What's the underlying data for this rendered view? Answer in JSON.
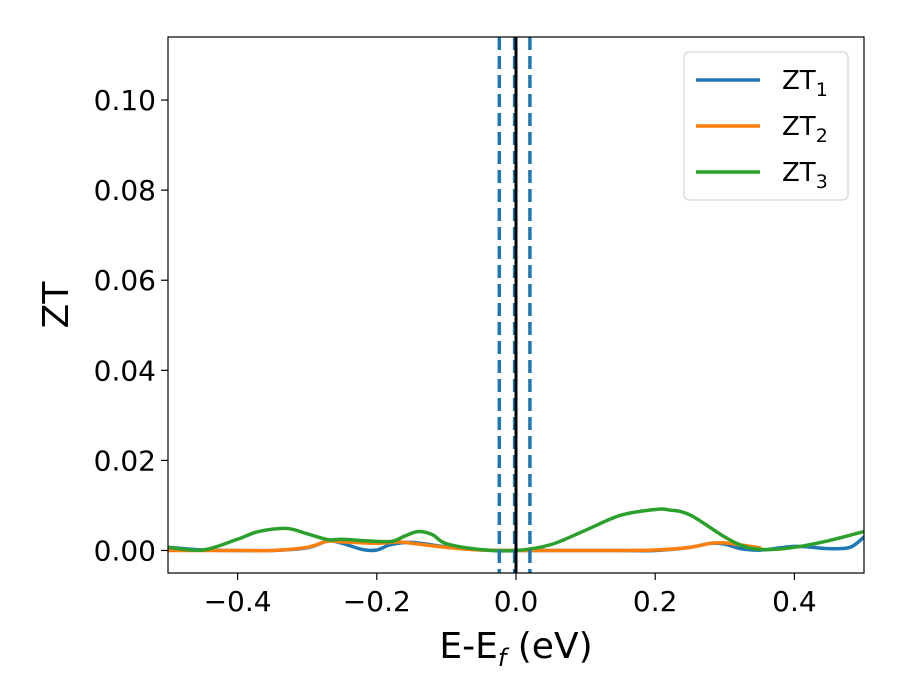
{
  "chart_data": {
    "type": "line",
    "xlabel": "E-E",
    "xlabel_sub": "f",
    "xlabel_unit": " (eV)",
    "ylabel": "ZT",
    "xlim": [
      -0.5,
      0.5
    ],
    "ylim": [
      -0.005,
      0.114
    ],
    "xticks": [
      -0.4,
      -0.2,
      0.0,
      0.2,
      0.4
    ],
    "xtick_labels": [
      "−0.4",
      "−0.2",
      "0.0",
      "0.2",
      "0.4"
    ],
    "yticks": [
      0.0,
      0.02,
      0.04,
      0.06,
      0.08,
      0.1
    ],
    "ytick_labels": [
      "0.00",
      "0.02",
      "0.04",
      "0.06",
      "0.08",
      "0.10"
    ],
    "grid": false,
    "legend_position": "top-right",
    "series": [
      {
        "name": "ZT",
        "name_sub": "1",
        "color": "#1f77b4",
        "x": [
          -0.5,
          -0.45,
          -0.4,
          -0.35,
          -0.3,
          -0.27,
          -0.25,
          -0.22,
          -0.2,
          -0.18,
          -0.15,
          -0.1,
          -0.05,
          0.0,
          0.05,
          0.1,
          0.15,
          0.2,
          0.25,
          0.28,
          0.3,
          0.32,
          0.34,
          0.36,
          0.38,
          0.4,
          0.42,
          0.45,
          0.48,
          0.5
        ],
        "y": [
          0.0007,
          0.0001,
          0.0,
          0.0,
          0.0006,
          0.0021,
          0.0016,
          0.0002,
          0.0001,
          0.0013,
          0.0018,
          0.0008,
          0.0001,
          0.0,
          0.0,
          0.0,
          0.0,
          0.0,
          0.0007,
          0.0016,
          0.0014,
          0.0005,
          0.0001,
          0.0002,
          0.0006,
          0.0009,
          0.0008,
          0.0004,
          0.0007,
          0.003
        ]
      },
      {
        "name": "ZT",
        "name_sub": "2",
        "color": "#ff7f0e",
        "x": [
          -0.5,
          -0.45,
          -0.4,
          -0.35,
          -0.3,
          -0.27,
          -0.25,
          -0.2,
          -0.17,
          -0.15,
          -0.1,
          -0.05,
          0.0,
          0.05,
          0.1,
          0.15,
          0.2,
          0.25,
          0.28,
          0.3,
          0.32,
          0.35
        ],
        "y": [
          0.0,
          0.0,
          0.0,
          0.0,
          0.0007,
          0.0021,
          0.0019,
          0.0016,
          0.0019,
          0.0016,
          0.0007,
          0.0001,
          0.0,
          0.0,
          0.0,
          0.0,
          0.0001,
          0.0007,
          0.0016,
          0.0017,
          0.0013,
          0.0006
        ]
      },
      {
        "name": "ZT",
        "name_sub": "3",
        "color": "#2ca02c",
        "x": [
          -0.5,
          -0.45,
          -0.4,
          -0.37,
          -0.33,
          -0.3,
          -0.27,
          -0.25,
          -0.22,
          -0.18,
          -0.16,
          -0.14,
          -0.12,
          -0.1,
          -0.05,
          0.0,
          0.05,
          0.1,
          0.15,
          0.2,
          0.22,
          0.25,
          0.3,
          0.33,
          0.36,
          0.4,
          0.45,
          0.5
        ],
        "y": [
          0.0007,
          0.0001,
          0.0025,
          0.0042,
          0.0049,
          0.0037,
          0.0024,
          0.0025,
          0.0022,
          0.002,
          0.0032,
          0.0042,
          0.0035,
          0.0015,
          0.0002,
          0.0,
          0.0013,
          0.0045,
          0.0078,
          0.0091,
          0.009,
          0.0079,
          0.003,
          0.0008,
          0.0002,
          0.0007,
          0.0022,
          0.0042
        ]
      }
    ],
    "vlines": [
      {
        "x": -0.024,
        "color": "#1f77b4",
        "style": "dashed"
      },
      {
        "x": -0.002,
        "color": "#1f77b4",
        "style": "dashed"
      },
      {
        "x": 0.02,
        "color": "#1f77b4",
        "style": "dashed"
      },
      {
        "x": 0.0,
        "color": "#000000",
        "style": "solid"
      }
    ]
  }
}
